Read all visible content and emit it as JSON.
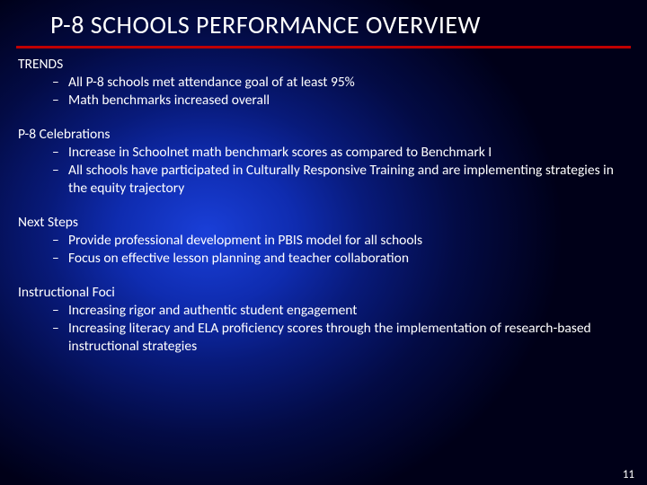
{
  "slide": {
    "title": "P-8 SCHOOLS PERFORMANCE OVERVIEW",
    "page_number": "11",
    "title_color": "#ffffff",
    "rule_color": "#c00000",
    "text_color": "#ffffff",
    "background": {
      "type": "radial-gradient",
      "center": "32% 48%",
      "stops": [
        "#1a3fd8",
        "#0f2cb0",
        "#081a7a",
        "#030b45",
        "#000018"
      ]
    },
    "title_fontsize": 28,
    "body_fontsize": 15.5,
    "bullet_char": "–",
    "sections": [
      {
        "heading": "TRENDS",
        "items": [
          "All P-8 schools met attendance goal of at least 95%",
          "Math benchmarks increased overall"
        ]
      },
      {
        "heading": "P-8 Celebrations",
        "items": [
          "Increase in Schoolnet math benchmark scores as compared to Benchmark I",
          "All schools have participated in Culturally Responsive Training and are implementing strategies in the equity trajectory"
        ]
      },
      {
        "heading": "Next Steps",
        "items": [
          "Provide professional development in PBIS model for all schools",
          "Focus on effective lesson planning and teacher collaboration"
        ]
      },
      {
        "heading": "Instructional Foci",
        "items": [
          "Increasing rigor and authentic student engagement",
          "Increasing literacy and ELA proficiency scores through the implementation of research-based instructional strategies"
        ]
      }
    ]
  }
}
